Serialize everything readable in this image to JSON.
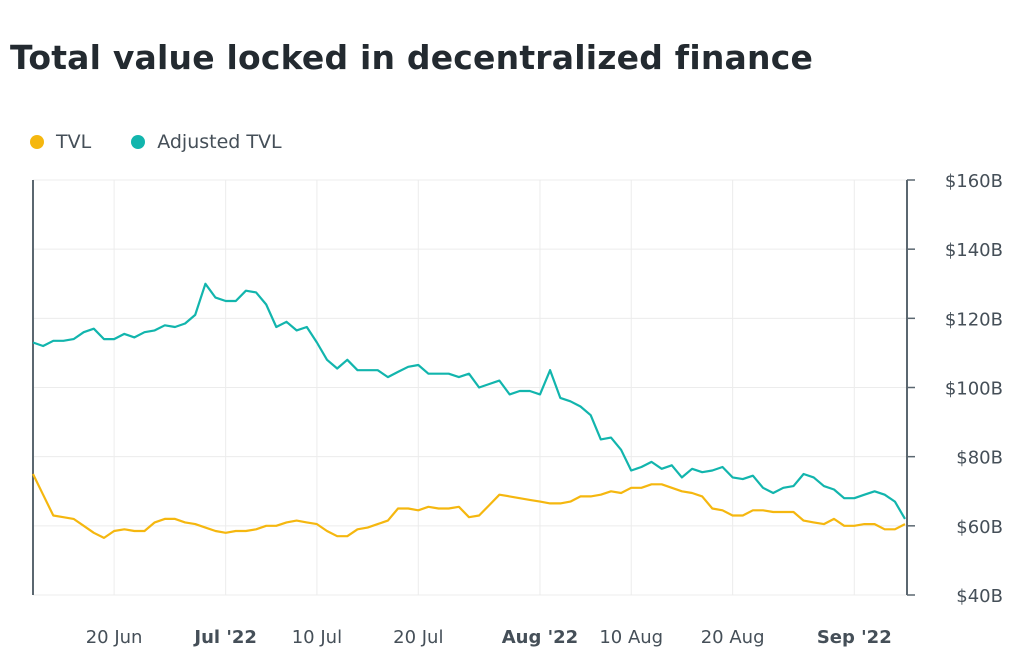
{
  "chart_data": {
    "type": "line",
    "title": "Total value locked in decentralized finance",
    "xlabel": "",
    "ylabel": "",
    "ylim": [
      40,
      160
    ],
    "yticks": [
      40,
      60,
      80,
      100,
      120,
      140,
      160
    ],
    "ytick_labels": [
      "$40B",
      "$60B",
      "$80B",
      "$100B",
      "$120B",
      "$140B",
      "$160B"
    ],
    "y_axis_side": "right",
    "xticks": [
      {
        "date": "2022-06-20",
        "label": "20 Jun",
        "bold": false
      },
      {
        "date": "2022-07-01",
        "label": "Jul '22",
        "bold": true
      },
      {
        "date": "2022-07-10",
        "label": "10 Jul",
        "bold": false
      },
      {
        "date": "2022-07-20",
        "label": "20 Jul",
        "bold": false
      },
      {
        "date": "2022-08-01",
        "label": "Aug '22",
        "bold": true
      },
      {
        "date": "2022-08-10",
        "label": "10 Aug",
        "bold": false
      },
      {
        "date": "2022-08-20",
        "label": "20 Aug",
        "bold": false
      },
      {
        "date": "2022-09-01",
        "label": "Sep '22",
        "bold": true
      }
    ],
    "grid": true,
    "legend_placement": "top-left",
    "x": [
      "2022-06-12",
      "2022-06-13",
      "2022-06-14",
      "2022-06-15",
      "2022-06-16",
      "2022-06-17",
      "2022-06-18",
      "2022-06-19",
      "2022-06-20",
      "2022-06-21",
      "2022-06-22",
      "2022-06-23",
      "2022-06-24",
      "2022-06-25",
      "2022-06-26",
      "2022-06-27",
      "2022-06-28",
      "2022-06-29",
      "2022-06-30",
      "2022-07-01",
      "2022-07-02",
      "2022-07-03",
      "2022-07-04",
      "2022-07-05",
      "2022-07-06",
      "2022-07-07",
      "2022-07-08",
      "2022-07-09",
      "2022-07-10",
      "2022-07-11",
      "2022-07-12",
      "2022-07-13",
      "2022-07-14",
      "2022-07-15",
      "2022-07-16",
      "2022-07-17",
      "2022-07-18",
      "2022-07-19",
      "2022-07-20",
      "2022-07-21",
      "2022-07-22",
      "2022-07-23",
      "2022-07-24",
      "2022-07-25",
      "2022-07-26",
      "2022-07-27",
      "2022-07-28",
      "2022-07-29",
      "2022-07-30",
      "2022-07-31",
      "2022-08-01",
      "2022-08-02",
      "2022-08-03",
      "2022-08-04",
      "2022-08-05",
      "2022-08-06",
      "2022-08-07",
      "2022-08-08",
      "2022-08-09",
      "2022-08-10",
      "2022-08-11",
      "2022-08-12",
      "2022-08-13",
      "2022-08-14",
      "2022-08-15",
      "2022-08-16",
      "2022-08-17",
      "2022-08-18",
      "2022-08-19",
      "2022-08-20",
      "2022-08-21",
      "2022-08-22",
      "2022-08-23",
      "2022-08-24",
      "2022-08-25",
      "2022-08-26",
      "2022-08-27",
      "2022-08-28",
      "2022-08-29",
      "2022-08-30",
      "2022-08-31",
      "2022-09-01",
      "2022-09-02",
      "2022-09-03",
      "2022-09-04",
      "2022-09-05",
      "2022-09-06"
    ],
    "series": [
      {
        "name": "TVL",
        "color": "#f5b70f",
        "values": [
          75,
          69,
          63,
          62.5,
          62,
          60,
          58,
          56.5,
          58.5,
          59,
          58.5,
          58.5,
          61,
          62,
          62,
          61,
          60.5,
          59.5,
          58.5,
          58,
          58.5,
          58.5,
          59,
          60,
          60,
          61,
          61.5,
          61,
          60.5,
          58.5,
          57,
          57,
          59,
          59.5,
          60.5,
          61.5,
          65,
          65,
          64.5,
          65.5,
          65,
          65,
          65.5,
          62.5,
          63,
          66,
          69,
          68.5,
          68,
          67.5,
          67,
          66.5,
          66.5,
          67,
          68.5,
          68.5,
          69,
          70,
          69.5,
          71,
          71,
          72,
          72,
          71,
          70,
          69.5,
          68.5,
          65,
          64.5,
          63,
          63,
          64.5,
          64.5,
          64,
          64,
          64,
          61.5,
          61,
          60.5,
          62,
          60,
          60,
          60.5,
          60.5,
          59,
          59,
          60.5
        ]
      },
      {
        "name": "Adjusted TVL",
        "color": "#12b5ad",
        "values": [
          113,
          112,
          113.5,
          113.5,
          114,
          116,
          117,
          114,
          114,
          115.5,
          114.5,
          116,
          116.5,
          118,
          117.5,
          118.5,
          121,
          130,
          126,
          125,
          125,
          128,
          127.5,
          124,
          117.5,
          119,
          116.5,
          117.5,
          113,
          108,
          105.5,
          108,
          105,
          105,
          105,
          103,
          104.5,
          106,
          106.5,
          104,
          104,
          104,
          103,
          104,
          100,
          101,
          102,
          98,
          99,
          99,
          98,
          105,
          97,
          96,
          94.5,
          92,
          85,
          85.5,
          82,
          76,
          77,
          78.5,
          76.5,
          77.5,
          74,
          76.5,
          75.5,
          76,
          77,
          74,
          73.5,
          74.5,
          71,
          69.5,
          71,
          71.5,
          75,
          74,
          71.5,
          70.5,
          68,
          68,
          69,
          70,
          69,
          67,
          62
        ]
      }
    ]
  }
}
